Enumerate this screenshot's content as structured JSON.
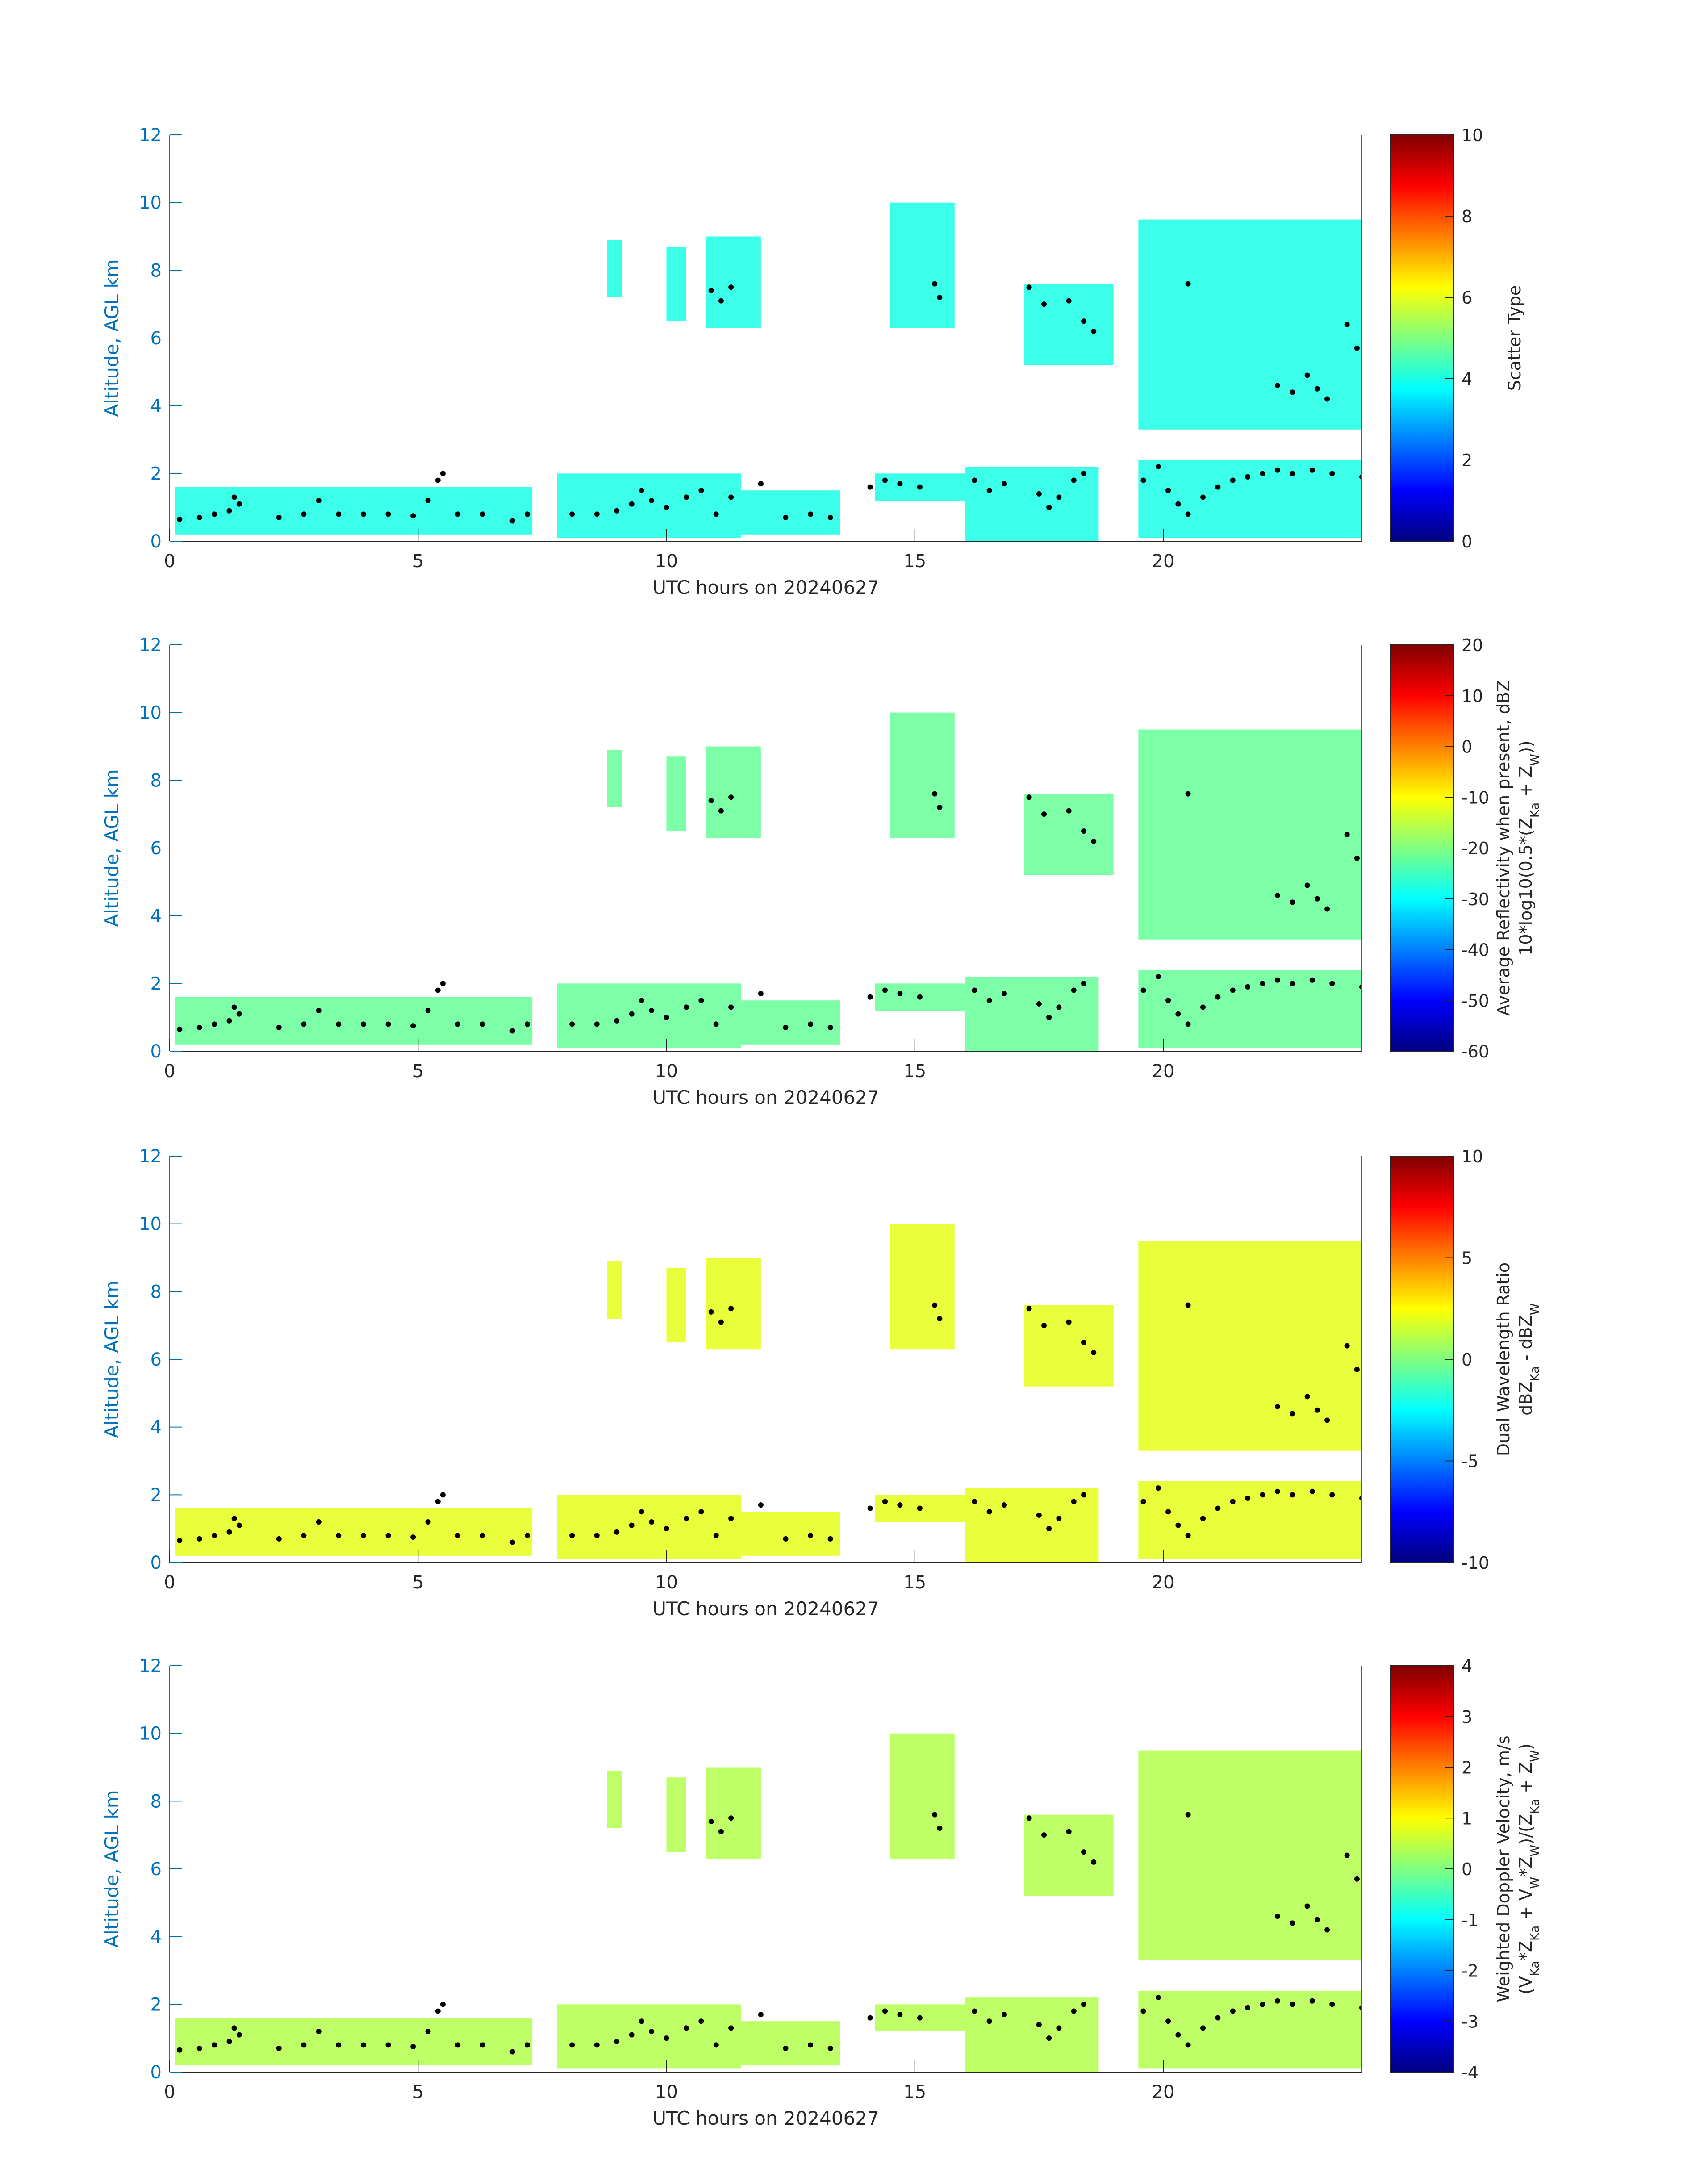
{
  "chart_data": [
    {
      "type": "heatmap",
      "xlabel": "UTC hours on 20240627",
      "ylabel": "Altitude, AGL km",
      "xlim": [
        0,
        24
      ],
      "ylim": [
        0,
        12
      ],
      "xticks": [
        "0",
        "5",
        "10",
        "15",
        "20"
      ],
      "yticks": [
        "0",
        "2",
        "4",
        "6",
        "8",
        "10",
        "12"
      ],
      "colorbar": {
        "label_lines": [
          "Scatter Type"
        ],
        "range": [
          0,
          10
        ],
        "ticks": [
          "0",
          "2",
          "4",
          "6",
          "8",
          "10"
        ],
        "colormap": "jet"
      },
      "cloud_value": 4,
      "grid": false
    },
    {
      "type": "heatmap",
      "xlabel": "UTC hours on 20240627",
      "ylabel": "Altitude, AGL km",
      "xlim": [
        0,
        24
      ],
      "ylim": [
        0,
        12
      ],
      "xticks": [
        "0",
        "5",
        "10",
        "15",
        "20"
      ],
      "yticks": [
        "0",
        "2",
        "4",
        "6",
        "8",
        "10",
        "12"
      ],
      "colorbar": {
        "label_lines": [
          "Average Reflectivity when present, dBZ",
          "10*log10(0.5*(Z_Ka + Z_W))"
        ],
        "range": [
          -60,
          20
        ],
        "ticks": [
          "-60",
          "-50",
          "-40",
          "-30",
          "-20",
          "-10",
          "0",
          "10",
          "20"
        ],
        "colormap": "jet"
      },
      "cloud_value": -22,
      "grid": false
    },
    {
      "type": "heatmap",
      "xlabel": "UTC hours on 20240627",
      "ylabel": "Altitude, AGL km",
      "xlim": [
        0,
        24
      ],
      "ylim": [
        0,
        12
      ],
      "xticks": [
        "0",
        "5",
        "10",
        "15",
        "20"
      ],
      "yticks": [
        "0",
        "2",
        "4",
        "6",
        "8",
        "10",
        "12"
      ],
      "colorbar": {
        "label_lines": [
          "Dual Wavelength Ratio",
          "dBZ_Ka - dBZ_W"
        ],
        "range": [
          -10,
          10
        ],
        "ticks": [
          "-10",
          "-5",
          "0",
          "5",
          "10"
        ],
        "colormap": "jet"
      },
      "cloud_value": 2,
      "grid": false
    },
    {
      "type": "heatmap",
      "xlabel": "UTC hours on 20240627",
      "ylabel": "Altitude, AGL km",
      "xlim": [
        0,
        24
      ],
      "ylim": [
        0,
        12
      ],
      "xticks": [
        "0",
        "5",
        "10",
        "15",
        "20"
      ],
      "yticks": [
        "0",
        "2",
        "4",
        "6",
        "8",
        "10",
        "12"
      ],
      "colorbar": {
        "label_lines": [
          "Weighted Doppler Velocity, m/s",
          "(V_Ka*Z_Ka + V_W*Z_W)/(Z_Ka + Z_W)"
        ],
        "range": [
          -4,
          4
        ],
        "ticks": [
          "-4",
          "-3",
          "-2",
          "-1",
          "0",
          "1",
          "2",
          "3",
          "4"
        ],
        "colormap": "jet"
      },
      "cloud_value": 0.4,
      "grid": false
    }
  ],
  "cloud_regions": [
    {
      "t": [
        8.8,
        9.1
      ],
      "alt": [
        7.2,
        8.9
      ]
    },
    {
      "t": [
        10.0,
        10.4
      ],
      "alt": [
        6.5,
        8.7
      ]
    },
    {
      "t": [
        10.8,
        11.9
      ],
      "alt": [
        6.3,
        9.0
      ]
    },
    {
      "t": [
        14.5,
        15.8
      ],
      "alt": [
        6.3,
        10.0
      ]
    },
    {
      "t": [
        17.2,
        19.0
      ],
      "alt": [
        5.2,
        7.6
      ]
    },
    {
      "t": [
        19.5,
        24.0
      ],
      "alt": [
        3.3,
        9.5
      ]
    },
    {
      "t": [
        0.1,
        7.3
      ],
      "alt": [
        0.2,
        1.6
      ]
    },
    {
      "t": [
        7.8,
        11.5
      ],
      "alt": [
        0.1,
        2.0
      ]
    },
    {
      "t": [
        11.5,
        13.5
      ],
      "alt": [
        0.2,
        1.5
      ]
    },
    {
      "t": [
        14.2,
        16.0
      ],
      "alt": [
        1.2,
        2.0
      ]
    },
    {
      "t": [
        16.0,
        18.7
      ],
      "alt": [
        0.0,
        2.2
      ]
    },
    {
      "t": [
        19.5,
        24.0
      ],
      "alt": [
        0.1,
        2.4
      ]
    }
  ],
  "cloud_base_points": [
    [
      0.2,
      0.65
    ],
    [
      0.6,
      0.7
    ],
    [
      0.9,
      0.8
    ],
    [
      1.2,
      0.9
    ],
    [
      1.3,
      1.3
    ],
    [
      1.4,
      1.1
    ],
    [
      2.2,
      0.7
    ],
    [
      2.7,
      0.8
    ],
    [
      3.0,
      1.2
    ],
    [
      3.4,
      0.8
    ],
    [
      3.9,
      0.8
    ],
    [
      4.4,
      0.8
    ],
    [
      4.9,
      0.75
    ],
    [
      5.2,
      1.2
    ],
    [
      5.4,
      1.8
    ],
    [
      5.5,
      2.0
    ],
    [
      5.8,
      0.8
    ],
    [
      6.3,
      0.8
    ],
    [
      6.9,
      0.6
    ],
    [
      7.2,
      0.8
    ],
    [
      8.1,
      0.8
    ],
    [
      8.6,
      0.8
    ],
    [
      9.0,
      0.9
    ],
    [
      9.3,
      1.1
    ],
    [
      9.5,
      1.5
    ],
    [
      9.7,
      1.2
    ],
    [
      10.0,
      1.0
    ],
    [
      10.4,
      1.3
    ],
    [
      10.7,
      1.5
    ],
    [
      11.0,
      0.8
    ],
    [
      11.3,
      1.3
    ],
    [
      11.9,
      1.7
    ],
    [
      12.4,
      0.7
    ],
    [
      12.9,
      0.8
    ],
    [
      13.3,
      0.7
    ],
    [
      14.1,
      1.6
    ],
    [
      14.4,
      1.8
    ],
    [
      14.7,
      1.7
    ],
    [
      15.1,
      1.6
    ],
    [
      16.2,
      1.8
    ],
    [
      16.5,
      1.5
    ],
    [
      16.8,
      1.7
    ],
    [
      17.5,
      1.4
    ],
    [
      17.7,
      1.0
    ],
    [
      17.9,
      1.3
    ],
    [
      18.2,
      1.8
    ],
    [
      18.4,
      2.0
    ],
    [
      19.6,
      1.8
    ],
    [
      19.9,
      2.2
    ],
    [
      20.1,
      1.5
    ],
    [
      20.3,
      1.1
    ],
    [
      20.5,
      0.8
    ],
    [
      20.8,
      1.3
    ],
    [
      21.1,
      1.6
    ],
    [
      21.4,
      1.8
    ],
    [
      21.7,
      1.9
    ],
    [
      22.0,
      2.0
    ],
    [
      22.3,
      2.1
    ],
    [
      22.6,
      2.0
    ],
    [
      23.0,
      2.1
    ],
    [
      23.4,
      2.0
    ],
    [
      24.0,
      1.9
    ],
    [
      10.9,
      7.4
    ],
    [
      11.1,
      7.1
    ],
    [
      11.3,
      7.5
    ],
    [
      15.4,
      7.6
    ],
    [
      15.5,
      7.2
    ],
    [
      17.3,
      7.5
    ],
    [
      17.6,
      7.0
    ],
    [
      18.1,
      7.1
    ],
    [
      18.4,
      6.5
    ],
    [
      18.6,
      6.2
    ],
    [
      20.5,
      7.6
    ],
    [
      22.3,
      4.6
    ],
    [
      22.6,
      4.4
    ],
    [
      22.9,
      4.9
    ],
    [
      23.1,
      4.5
    ],
    [
      23.3,
      4.2
    ],
    [
      23.7,
      6.4
    ],
    [
      23.9,
      5.7
    ]
  ]
}
